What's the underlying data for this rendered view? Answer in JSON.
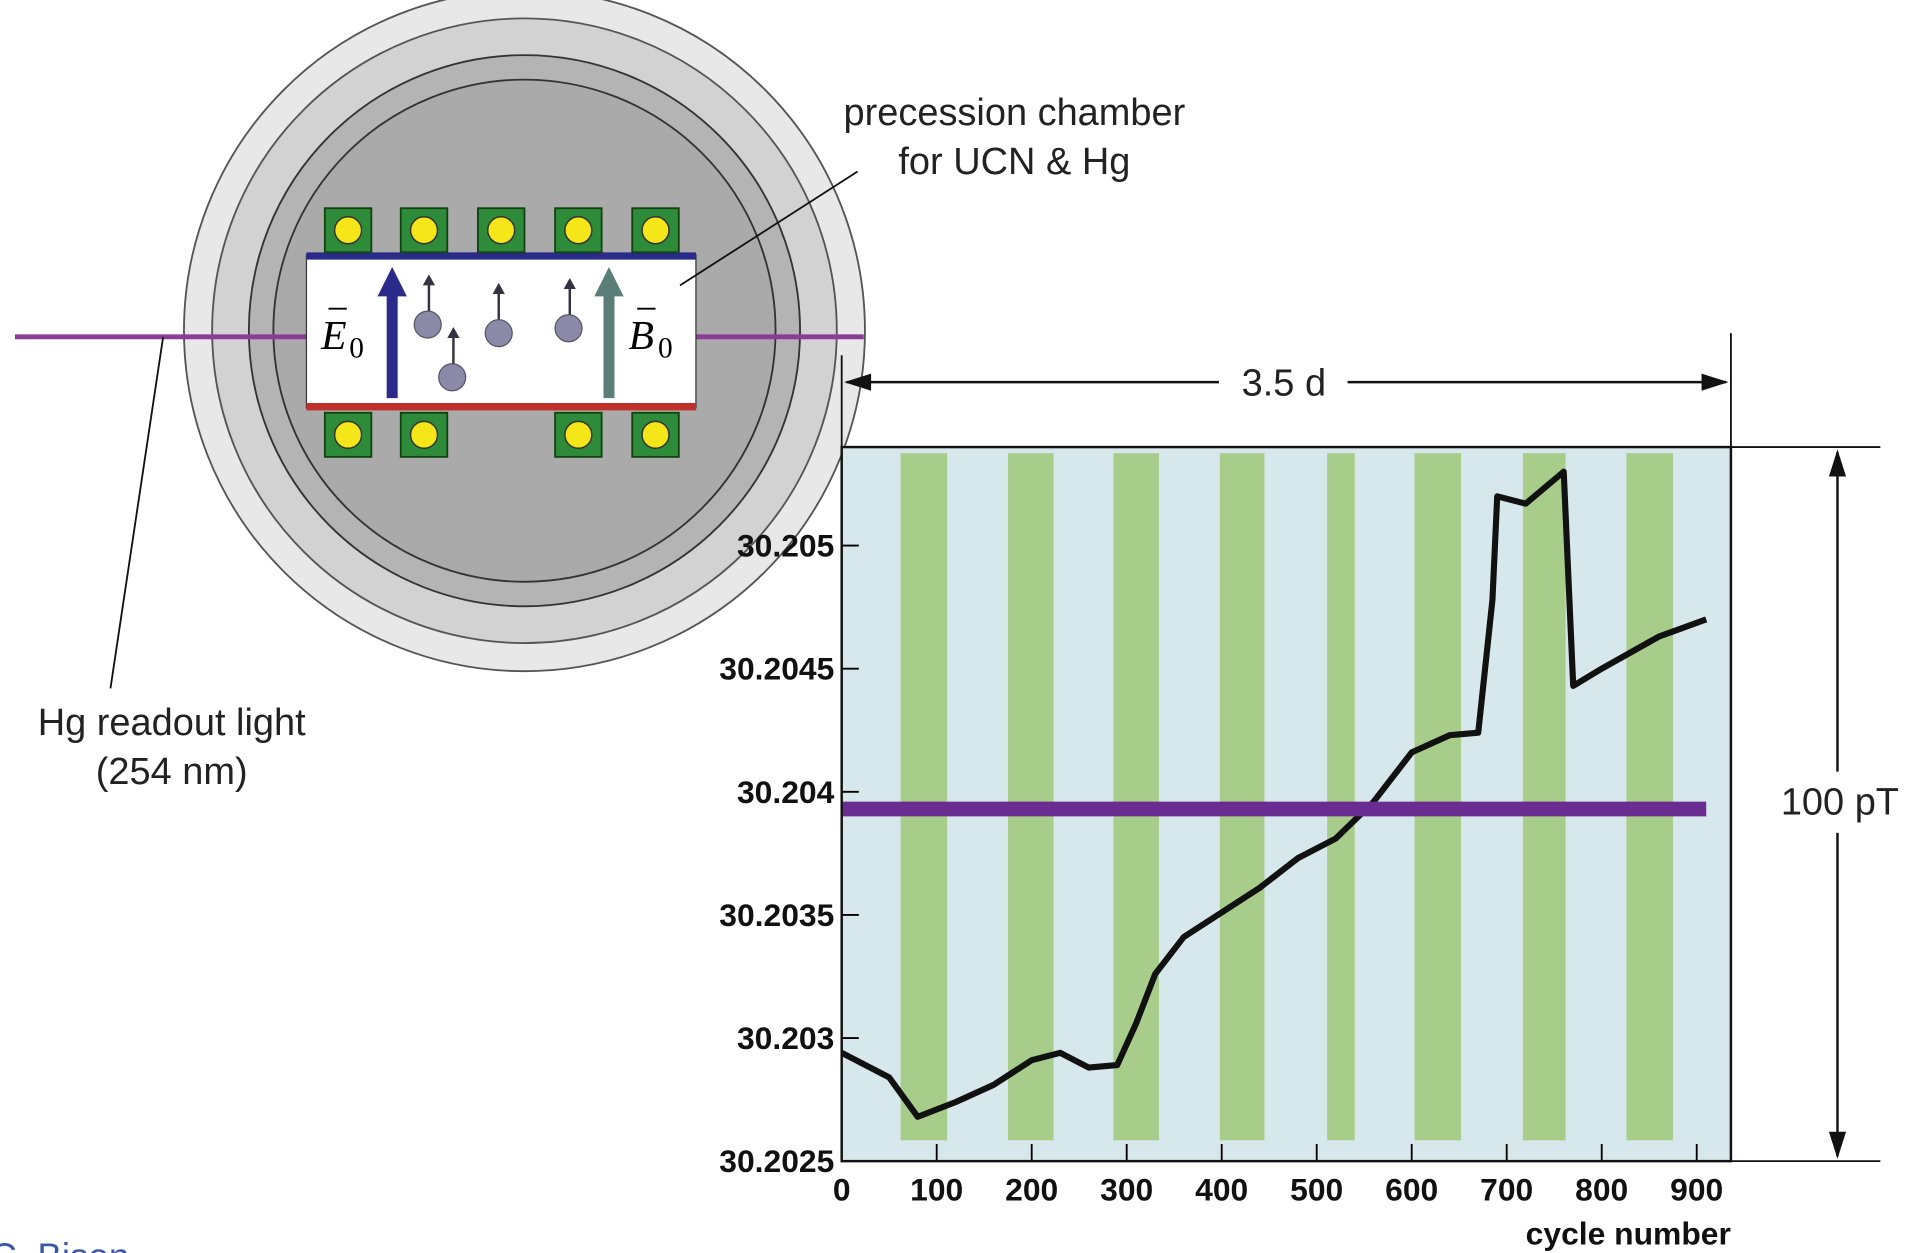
{
  "diagram": {
    "chamber_label": [
      "precession chamber",
      "for UCN & Hg"
    ],
    "light_label": [
      "Hg readout light",
      "(254 nm)"
    ],
    "e_field": {
      "symbol": "E",
      "subscript": "0"
    },
    "b_field": {
      "symbol": "B",
      "subscript": "0"
    },
    "credit": "C. Bison"
  },
  "chart_data": {
    "type": "line",
    "xlabel": "cycle number",
    "duration_label": "3.5 d",
    "range_label": "100 pT",
    "xlim": [
      0,
      936
    ],
    "ylim": [
      30.2025,
      30.2054
    ],
    "xticks": [
      0,
      100,
      200,
      300,
      400,
      500,
      600,
      700,
      800,
      900
    ],
    "yticks": [
      30.2025,
      30.203,
      30.2035,
      30.204,
      30.2045,
      30.205
    ],
    "background_color": "#d6e8ec",
    "band_color": "#a8cc8a",
    "bands": [
      [
        62,
        111
      ],
      [
        175,
        223
      ],
      [
        286,
        334
      ],
      [
        398,
        445
      ],
      [
        511,
        540
      ],
      [
        603,
        652
      ],
      [
        717,
        762
      ],
      [
        826,
        875
      ]
    ],
    "series": [
      {
        "color": "#111111",
        "x": [
          0,
          50,
          80,
          120,
          160,
          200,
          230,
          260,
          290,
          310,
          330,
          360,
          400,
          440,
          480,
          520,
          560,
          600,
          640,
          670,
          685,
          690,
          720,
          760,
          770,
          800,
          860,
          910
        ],
        "values": [
          30.20294,
          30.20284,
          30.20268,
          30.20274,
          30.20281,
          30.20291,
          30.20294,
          30.20288,
          30.20289,
          30.20306,
          30.20326,
          30.20341,
          30.20351,
          30.20361,
          30.20373,
          30.20381,
          30.20396,
          30.20416,
          30.20423,
          30.20424,
          30.20478,
          30.2052,
          30.20517,
          30.2053,
          30.20443,
          30.2045,
          30.20463,
          30.2047
        ]
      },
      {
        "color": "#6a2c91",
        "x": [
          0,
          300,
          600,
          910
        ],
        "values": [
          30.20393,
          30.20393,
          30.20393,
          30.20393
        ]
      }
    ]
  }
}
